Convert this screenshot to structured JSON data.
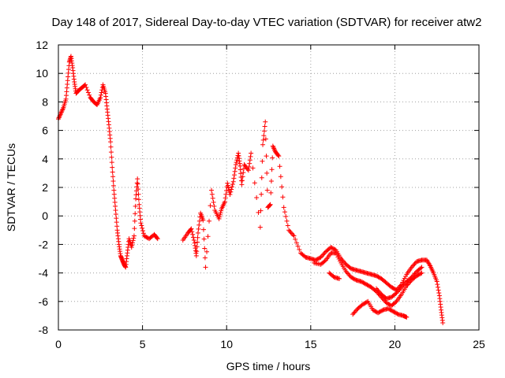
{
  "chart_data": {
    "type": "scatter",
    "title": "Day 148 of 2017, Sidereal Day-to-day VTEC variation (SDTVAR) for receiver atw2",
    "xlabel": "GPS time / hours",
    "ylabel": "SDTVAR / TECUs",
    "xlim": [
      0,
      25
    ],
    "ylim": [
      -8,
      12
    ],
    "xticks": [
      0,
      5,
      10,
      15,
      20,
      25
    ],
    "yticks": [
      -8,
      -6,
      -4,
      -2,
      0,
      2,
      4,
      6,
      8,
      10,
      12
    ],
    "grid": true,
    "marker": "+",
    "color": "#ff0000",
    "series": [
      {
        "name": "SDTVAR",
        "trace": [
          [
            0.0,
            6.8
          ],
          [
            0.15,
            7.2
          ],
          [
            0.3,
            7.6
          ],
          [
            0.45,
            8.2
          ],
          [
            0.55,
            9.5
          ],
          [
            0.65,
            10.8
          ],
          [
            0.75,
            11.2
          ],
          [
            0.85,
            10.4
          ],
          [
            0.95,
            9.4
          ],
          [
            1.05,
            8.6
          ],
          [
            1.2,
            8.8
          ],
          [
            1.4,
            9.0
          ],
          [
            1.6,
            9.2
          ],
          [
            1.9,
            8.3
          ],
          [
            2.1,
            8.0
          ],
          [
            2.3,
            7.8
          ],
          [
            2.5,
            8.3
          ],
          [
            2.65,
            9.2
          ],
          [
            2.8,
            8.6
          ],
          [
            2.9,
            7.5
          ],
          [
            3.0,
            6.4
          ],
          [
            3.1,
            5.2
          ],
          [
            3.2,
            3.4
          ],
          [
            3.3,
            1.8
          ],
          [
            3.4,
            0.4
          ],
          [
            3.5,
            -1.0
          ],
          [
            3.6,
            -2.0
          ],
          [
            3.7,
            -2.8
          ],
          [
            3.8,
            -3.1
          ],
          [
            3.9,
            -3.4
          ],
          [
            4.0,
            -3.6
          ],
          [
            4.1,
            -2.6
          ],
          [
            4.2,
            -1.6
          ],
          [
            4.35,
            -2.2
          ],
          [
            4.5,
            -1.4
          ],
          [
            4.6,
            1.2
          ],
          [
            4.7,
            2.6
          ],
          [
            4.8,
            0.8
          ],
          [
            4.9,
            -0.5
          ],
          [
            5.1,
            -1.4
          ],
          [
            5.4,
            -1.6
          ],
          [
            5.7,
            -1.3
          ],
          [
            5.9,
            -1.6
          ],
          [
            7.4,
            -1.7
          ],
          [
            7.7,
            -1.2
          ],
          [
            7.9,
            -0.9
          ],
          [
            8.1,
            -1.9
          ],
          [
            8.2,
            -2.8
          ],
          [
            8.3,
            -1.2
          ],
          [
            8.45,
            0.2
          ],
          [
            8.6,
            -0.3
          ],
          [
            8.75,
            -3.6
          ],
          [
            9.1,
            1.8
          ],
          [
            9.3,
            0.4
          ],
          [
            9.55,
            -0.2
          ],
          [
            9.7,
            0.5
          ],
          [
            9.9,
            1.0
          ],
          [
            10.05,
            2.3
          ],
          [
            10.2,
            1.5
          ],
          [
            10.4,
            2.4
          ],
          [
            10.55,
            3.6
          ],
          [
            10.7,
            4.4
          ],
          [
            10.8,
            3.5
          ],
          [
            10.9,
            2.2
          ],
          [
            11.05,
            3.6
          ],
          [
            11.3,
            3.2
          ],
          [
            11.45,
            4.4
          ],
          [
            12.0,
            -0.8
          ],
          [
            12.15,
            5.0
          ],
          [
            12.3,
            6.6
          ],
          [
            12.45,
            0.6
          ],
          [
            12.6,
            0.8
          ],
          [
            12.75,
            4.9
          ],
          [
            12.9,
            4.5
          ],
          [
            13.1,
            4.2
          ],
          [
            13.4,
            0.6
          ],
          [
            13.7,
            -1.0
          ],
          [
            14.0,
            -1.4
          ],
          [
            14.4,
            -2.6
          ],
          [
            14.7,
            -2.9
          ],
          [
            15.0,
            -3.0
          ],
          [
            15.3,
            -3.1
          ],
          [
            15.6,
            -2.9
          ],
          [
            15.9,
            -2.5
          ],
          [
            16.2,
            -2.2
          ],
          [
            16.5,
            -2.4
          ],
          [
            16.8,
            -3.0
          ],
          [
            17.1,
            -3.4
          ],
          [
            17.4,
            -3.7
          ],
          [
            17.7,
            -3.8
          ],
          [
            18.0,
            -3.9
          ],
          [
            18.3,
            -4.0
          ],
          [
            18.6,
            -4.1
          ],
          [
            18.9,
            -4.2
          ],
          [
            19.2,
            -4.4
          ],
          [
            19.5,
            -4.7
          ],
          [
            19.8,
            -5.0
          ],
          [
            20.1,
            -5.2
          ],
          [
            20.4,
            -4.8
          ],
          [
            20.7,
            -4.1
          ],
          [
            21.0,
            -3.6
          ],
          [
            21.3,
            -3.2
          ],
          [
            21.6,
            -3.1
          ],
          [
            21.9,
            -3.1
          ],
          [
            22.1,
            -3.5
          ],
          [
            22.3,
            -4.0
          ],
          [
            22.5,
            -4.6
          ],
          [
            22.65,
            -5.6
          ],
          [
            22.75,
            -6.6
          ],
          [
            22.85,
            -7.5
          ],
          [
            15.2,
            -3.3
          ],
          [
            15.6,
            -3.4
          ],
          [
            15.9,
            -3.1
          ],
          [
            16.2,
            -2.6
          ],
          [
            16.5,
            -2.6
          ],
          [
            16.8,
            -3.3
          ],
          [
            17.1,
            -3.9
          ],
          [
            17.4,
            -4.3
          ],
          [
            17.7,
            -4.5
          ],
          [
            18.0,
            -4.6
          ],
          [
            18.3,
            -4.8
          ],
          [
            18.6,
            -5.0
          ],
          [
            18.9,
            -5.3
          ],
          [
            19.2,
            -5.7
          ],
          [
            19.5,
            -6.1
          ],
          [
            19.8,
            -6.3
          ],
          [
            20.1,
            -6.0
          ],
          [
            20.4,
            -5.5
          ],
          [
            20.7,
            -4.9
          ],
          [
            21.0,
            -4.5
          ],
          [
            21.3,
            -4.2
          ],
          [
            21.6,
            -4.0
          ],
          [
            17.5,
            -6.9
          ],
          [
            17.8,
            -6.5
          ],
          [
            18.1,
            -6.2
          ],
          [
            18.4,
            -6.0
          ],
          [
            18.7,
            -6.6
          ],
          [
            19.0,
            -6.8
          ],
          [
            19.3,
            -6.6
          ],
          [
            19.6,
            -6.5
          ],
          [
            19.9,
            -6.7
          ],
          [
            20.2,
            -6.9
          ],
          [
            20.5,
            -7.0
          ],
          [
            20.7,
            -7.1
          ],
          [
            18.9,
            -5.1
          ],
          [
            19.2,
            -5.5
          ],
          [
            19.5,
            -5.8
          ],
          [
            19.8,
            -5.7
          ],
          [
            20.1,
            -5.4
          ],
          [
            20.4,
            -5.0
          ],
          [
            20.7,
            -4.6
          ],
          [
            21.0,
            -4.3
          ],
          [
            21.3,
            -3.9
          ],
          [
            21.6,
            -3.6
          ],
          [
            16.1,
            -4.0
          ],
          [
            16.4,
            -4.3
          ],
          [
            16.7,
            -4.4
          ]
        ]
      }
    ]
  }
}
